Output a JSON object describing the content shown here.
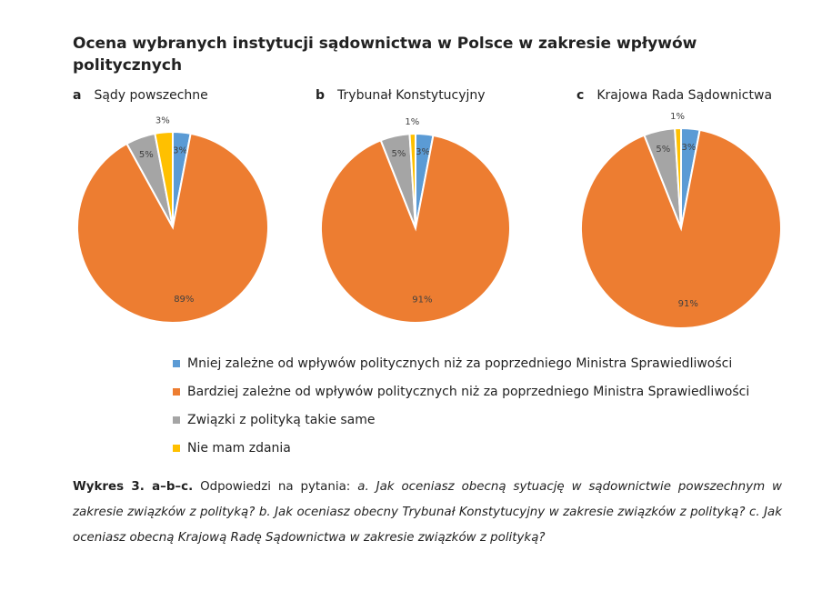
{
  "title": "Ocena wybranych instytucji sądownictwa w Polsce w zakresie wpływów politycznych",
  "colors": [
    "#5B9BD5",
    "#ED7D31",
    "#A5A5A5",
    "#FFC000"
  ],
  "legend": [
    "Mniej zależne od wpływów politycznych niż za poprzedniego Ministra Sprawiedliwości",
    "Bardziej zależne od wpływów politycznych niż za poprzedniego Ministra Sprawiedliwości",
    "Związki z polityką takie same",
    "Nie mam zdania"
  ],
  "chart_data": [
    {
      "type": "pie",
      "letter": "a",
      "title": "Sądy powszechne",
      "values": [
        3,
        89,
        5,
        3
      ],
      "labels": [
        "3%",
        "89%",
        "5%",
        "3%"
      ]
    },
    {
      "type": "pie",
      "letter": "b",
      "title": "Trybunał Konstytucyjny",
      "values": [
        3,
        91,
        5,
        1
      ],
      "labels": [
        "3%",
        "91%",
        "5%",
        "1%"
      ]
    },
    {
      "type": "pie",
      "letter": "c",
      "title": "Krajowa Rada Sądownictwa",
      "values": [
        3,
        91,
        5,
        1
      ],
      "labels": [
        "3%",
        "91%",
        "5%",
        "1%"
      ]
    }
  ],
  "caption": {
    "bold": "Wykres 3. a–b–c.",
    "text": " Odpowiedzi na pytania: ",
    "italic": "a. Jak oceniasz obecną sytuację w sądownictwie powszechnym w zakresie związków z polityką? b. Jak oceniasz obecny Trybunał Konstytucyjny w zakresie związków z polityką? c. Jak oceniasz obecną Krajową Radę Sądownictwa w zakresie związków z polityką?"
  }
}
